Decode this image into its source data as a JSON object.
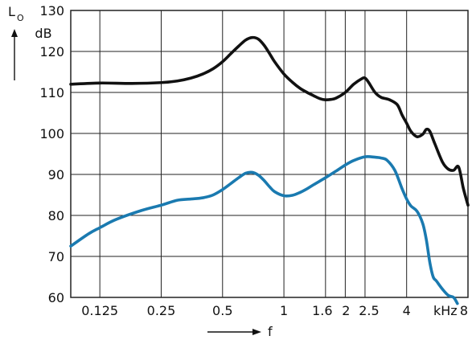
{
  "chart_data": {
    "type": "line",
    "title": "",
    "xlabel": "f",
    "ylabel": "L",
    "ylabel_subscript": "O",
    "y_unit": "dB",
    "x_unit": "kHz",
    "x_scale": "log",
    "xlim": [
      0.09,
      8
    ],
    "ylim": [
      60,
      130
    ],
    "grid": true,
    "legend": "none",
    "x_tick_labels": [
      "0.125",
      "0.25",
      "0.5",
      "1",
      "1.6",
      "2",
      "2.5",
      "4",
      "8"
    ],
    "y_tick_labels": [
      "60",
      "70",
      "80",
      "90",
      "100",
      "110",
      "120",
      "130"
    ],
    "series": [
      {
        "color": "#111111",
        "x": [
          0.09,
          0.125,
          0.18,
          0.25,
          0.3,
          0.35,
          0.4,
          0.45,
          0.5,
          0.55,
          0.6,
          0.65,
          0.7,
          0.75,
          0.8,
          0.85,
          0.9,
          1.0,
          1.1,
          1.2,
          1.3,
          1.4,
          1.5,
          1.6,
          1.7,
          1.8,
          2.0,
          2.2,
          2.4,
          2.5,
          2.6,
          2.8,
          3.0,
          3.3,
          3.6,
          3.8,
          4.0,
          4.2,
          4.5,
          4.8,
          5.0,
          5.2,
          5.5,
          6.0,
          6.4,
          6.8,
          7.2,
          7.6,
          8.0
        ],
        "y": [
          112,
          112.3,
          112.2,
          112.4,
          112.8,
          113.5,
          114.5,
          115.8,
          117.5,
          119.5,
          121.3,
          122.8,
          123.4,
          123.0,
          121.5,
          119.5,
          117.5,
          114.5,
          112.5,
          111.0,
          110.0,
          109.2,
          108.5,
          108.2,
          108.3,
          108.6,
          110.0,
          112.0,
          113.3,
          113.5,
          112.5,
          110.0,
          108.8,
          108.2,
          107.0,
          104.5,
          102.5,
          100.5,
          99.2,
          99.8,
          101.0,
          100.5,
          97.5,
          93.0,
          91.3,
          91.0,
          91.8,
          86.5,
          82.5
        ]
      },
      {
        "color": "#1a7ab0",
        "x": [
          0.09,
          0.11,
          0.125,
          0.15,
          0.2,
          0.25,
          0.3,
          0.35,
          0.4,
          0.45,
          0.5,
          0.55,
          0.6,
          0.65,
          0.7,
          0.75,
          0.8,
          0.85,
          0.9,
          1.0,
          1.1,
          1.2,
          1.3,
          1.4,
          1.6,
          1.8,
          2.0,
          2.2,
          2.5,
          2.8,
          3.0,
          3.2,
          3.5,
          3.8,
          4.0,
          4.2,
          4.5,
          4.8,
          5.0,
          5.2,
          5.4,
          5.6,
          6.0,
          6.4,
          6.8,
          7.1
        ],
        "y": [
          72.5,
          75.5,
          77.0,
          79.0,
          81.2,
          82.5,
          83.7,
          84.0,
          84.3,
          85.0,
          86.3,
          87.8,
          89.2,
          90.3,
          90.5,
          89.8,
          88.5,
          87.0,
          85.8,
          84.8,
          84.9,
          85.6,
          86.5,
          87.5,
          89.2,
          90.8,
          92.3,
          93.4,
          94.3,
          94.2,
          94.0,
          93.5,
          91.0,
          86.5,
          84.0,
          82.3,
          81.0,
          78.0,
          74.0,
          68.5,
          65.0,
          64.0,
          62.0,
          60.5,
          60.0,
          58.5
        ]
      }
    ]
  }
}
